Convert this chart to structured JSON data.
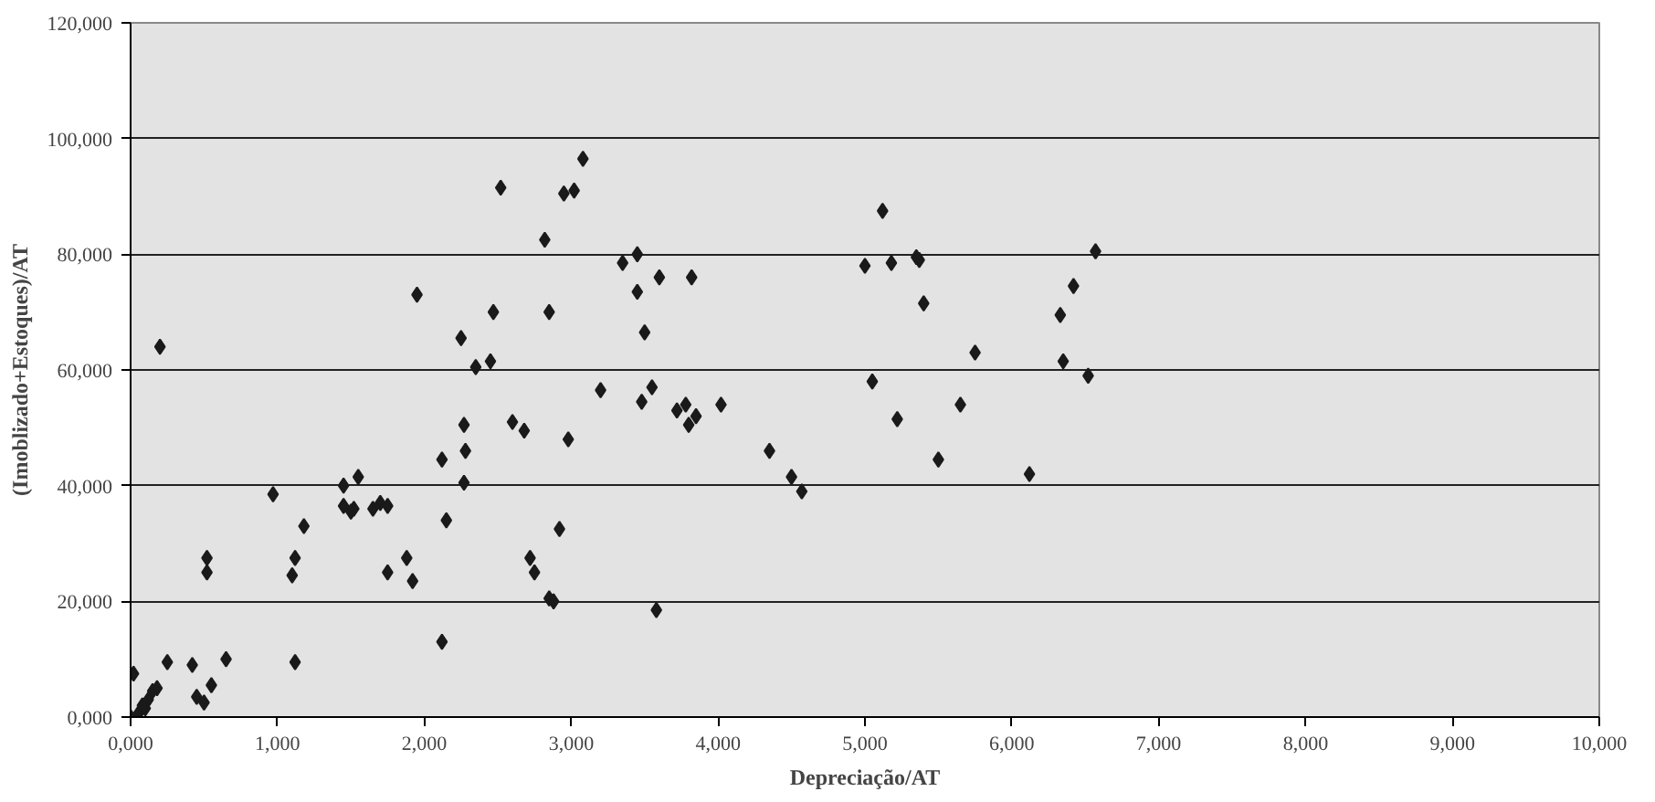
{
  "chart_data": {
    "type": "scatter",
    "xlabel": "Depreciação/AT",
    "ylabel": "(Imoblizado+Estoques)/AT",
    "x": [
      0.02,
      0.0,
      0.05,
      0.08,
      0.1,
      0.12,
      0.15,
      0.18,
      0.2,
      0.25,
      0.42,
      0.45,
      0.5,
      0.52,
      0.52,
      0.55,
      0.65,
      0.97,
      1.1,
      1.12,
      1.12,
      1.18,
      1.45,
      1.45,
      1.5,
      1.55,
      1.52,
      1.65,
      1.7,
      1.75,
      1.75,
      1.88,
      1.92,
      1.95,
      2.12,
      2.15,
      2.12,
      2.25,
      2.27,
      2.28,
      2.27,
      2.35,
      2.45,
      2.47,
      2.52,
      2.6,
      2.68,
      2.72,
      2.75,
      2.82,
      2.85,
      2.85,
      2.88,
      2.92,
      2.95,
      3.02,
      3.08,
      2.98,
      3.2,
      3.35,
      3.45,
      3.45,
      3.5,
      3.55,
      3.6,
      3.48,
      3.58,
      3.72,
      3.78,
      3.8,
      3.82,
      3.85,
      4.02,
      4.35,
      4.5,
      4.57,
      5.0,
      5.05,
      5.12,
      5.18,
      5.22,
      5.35,
      5.37,
      5.4,
      5.5,
      5.65,
      5.75,
      6.12,
      6.33,
      6.35,
      6.42,
      6.52,
      6.57
    ],
    "series": [
      {
        "color": "#1a1a1a",
        "values": [
          7.5,
          0,
          0.5,
          2,
          1.5,
          3,
          4.5,
          5,
          64,
          9.5,
          9,
          3.5,
          2.5,
          27.5,
          25,
          5.5,
          10,
          38.5,
          24.5,
          27.5,
          9.5,
          33,
          40,
          36.5,
          35.5,
          41.5,
          36,
          36,
          37,
          36.5,
          25,
          27.5,
          23.5,
          73,
          44.5,
          34,
          13,
          65.5,
          50.5,
          46,
          40.5,
          60.5,
          61.5,
          70,
          91.5,
          51,
          49.5,
          27.5,
          25,
          82.5,
          70,
          20.5,
          20,
          32.5,
          90.5,
          91,
          96.5,
          48,
          56.5,
          78.5,
          80,
          73.5,
          66.5,
          57,
          76,
          54.5,
          18.5,
          53,
          54,
          50.5,
          76,
          52,
          54,
          46,
          41.5,
          39,
          78,
          58,
          87.5,
          78.5,
          51.5,
          79.5,
          79,
          71.5,
          44.5,
          54,
          63,
          42,
          69.5,
          61.5,
          74.5,
          59,
          80.5
        ]
      }
    ],
    "xlim": [
      0,
      10
    ],
    "ylim": [
      0,
      120
    ],
    "xticks": [
      {
        "value": 0,
        "label": "0,000"
      },
      {
        "value": 1,
        "label": "1,000"
      },
      {
        "value": 2,
        "label": "2,000"
      },
      {
        "value": 3,
        "label": "3,000"
      },
      {
        "value": 4,
        "label": "4,000"
      },
      {
        "value": 5,
        "label": "5,000"
      },
      {
        "value": 6,
        "label": "6,000"
      },
      {
        "value": 7,
        "label": "7,000"
      },
      {
        "value": 8,
        "label": "8,000"
      },
      {
        "value": 9,
        "label": "9,000"
      },
      {
        "value": 10,
        "label": "10,000"
      }
    ],
    "yticks": [
      {
        "value": 0,
        "label": "0,000"
      },
      {
        "value": 20,
        "label": "20,000"
      },
      {
        "value": 40,
        "label": "40,000"
      },
      {
        "value": 60,
        "label": "60,000"
      },
      {
        "value": 80,
        "label": "80,000"
      },
      {
        "value": 100,
        "label": "100,000"
      },
      {
        "value": 120,
        "label": "120,000"
      }
    ],
    "grid": "y",
    "marker": "diamond"
  }
}
